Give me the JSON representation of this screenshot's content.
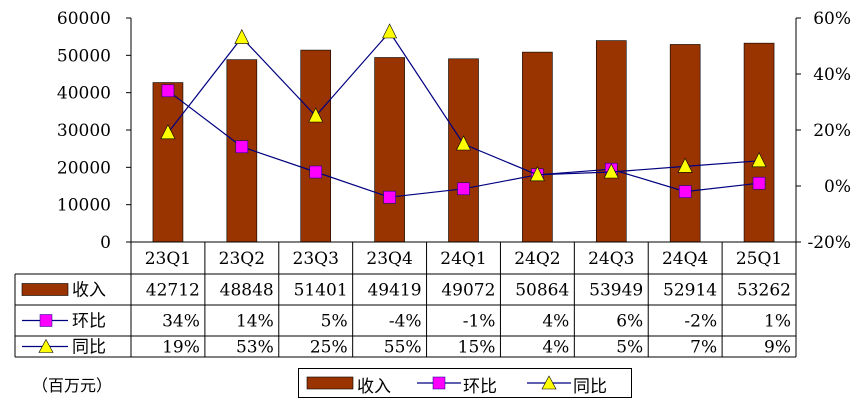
{
  "chart_data": {
    "type": "bar",
    "categories": [
      "23Q1",
      "23Q2",
      "23Q3",
      "23Q4",
      "24Q1",
      "24Q2",
      "24Q3",
      "24Q4",
      "25Q1"
    ],
    "series": [
      {
        "name": "收入",
        "type": "bar",
        "axis": "left",
        "color": "#993300",
        "values": [
          42712,
          48848,
          51401,
          49419,
          49072,
          50864,
          53949,
          52914,
          53262
        ],
        "labels": [
          "42712",
          "48848",
          "51401",
          "49419",
          "49072",
          "50864",
          "53949",
          "52914",
          "53262"
        ]
      },
      {
        "name": "环比",
        "type": "line",
        "axis": "right",
        "color": "#FF00FF",
        "marker": "square",
        "values": [
          34,
          14,
          5,
          -4,
          -1,
          4,
          6,
          -2,
          1
        ],
        "labels": [
          "34%",
          "14%",
          "5%",
          "-4%",
          "-1%",
          "4%",
          "6%",
          "-2%",
          "1%"
        ]
      },
      {
        "name": "同比",
        "type": "line",
        "axis": "right",
        "color": "#FFFF00",
        "marker": "triangle",
        "values": [
          19,
          53,
          25,
          55,
          15,
          4,
          5,
          7,
          9
        ],
        "labels": [
          "19%",
          "53%",
          "25%",
          "55%",
          "15%",
          "4%",
          "5%",
          "7%",
          "9%"
        ]
      }
    ],
    "y_left": {
      "min": 0,
      "max": 60000,
      "ticks": [
        "0",
        "10000",
        "20000",
        "30000",
        "40000",
        "50000",
        "60000"
      ]
    },
    "y_right": {
      "min": -20,
      "max": 60,
      "ticks": [
        "-20%",
        "0%",
        "20%",
        "40%",
        "60%"
      ]
    },
    "unit_label": "（百万元）",
    "line_color": "#000080",
    "grid": false,
    "legend_position": "bottom",
    "data_table": true
  }
}
